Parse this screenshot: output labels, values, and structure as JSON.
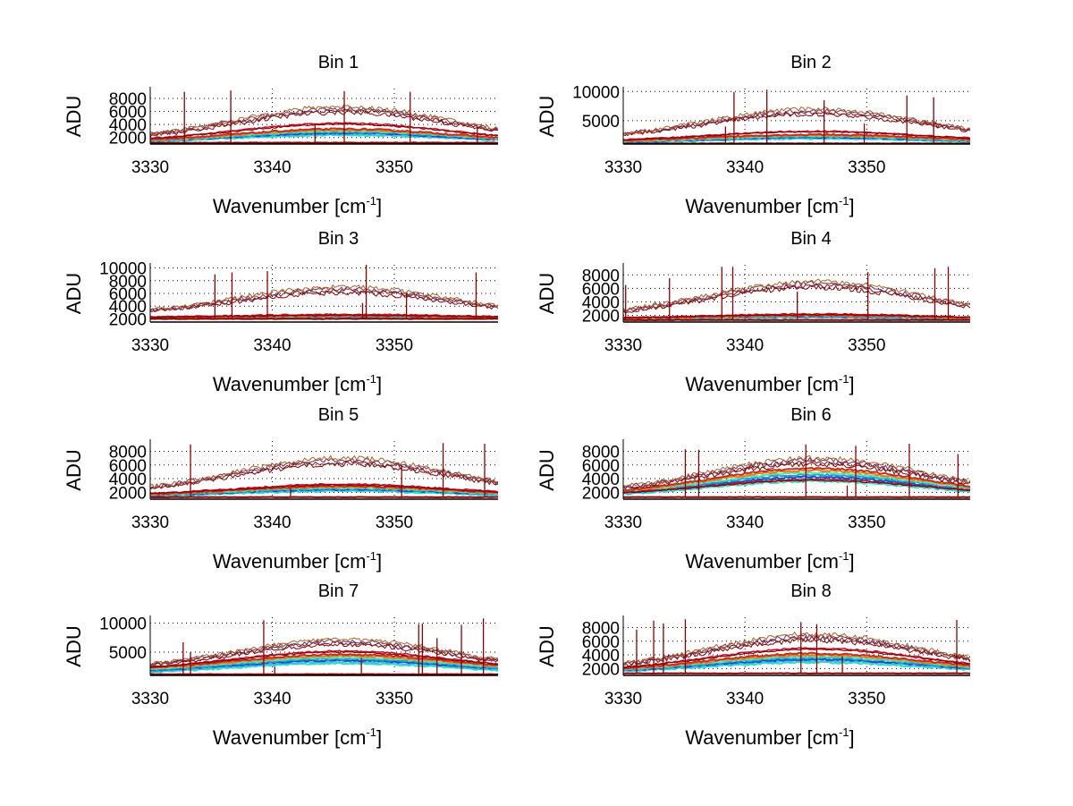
{
  "chart_data": [
    {
      "type": "line",
      "title": "Bin 1",
      "xlabel": "Wavenumber [cm",
      "xlabel_sup": "-1",
      "xlabel_end": "]",
      "ylabel": "ADU",
      "xlim": [
        3330,
        3358.5
      ],
      "ylim": [
        1000,
        9500
      ],
      "xticks": [
        3330,
        3340,
        3350
      ],
      "yticks": [
        2000,
        4000,
        6000,
        8000
      ],
      "grid": true,
      "upper_peak": 6700,
      "upper_base": 1500,
      "lower_peak": 4200,
      "lower_base": 1300,
      "band_peak": 3300,
      "floor": 1200,
      "spikes": [
        [
          3332.8,
          9000
        ],
        [
          3336.6,
          9200
        ],
        [
          3345.9,
          9100
        ],
        [
          3351.3,
          9000
        ],
        [
          3343.5,
          4000
        ],
        [
          3356.8,
          3500
        ]
      ]
    },
    {
      "type": "line",
      "title": "Bin 2",
      "xlabel": "Wavenumber [cm",
      "xlabel_sup": "-1",
      "xlabel_end": "]",
      "ylabel": "ADU",
      "xlim": [
        3330,
        3358.5
      ],
      "ylim": [
        1000,
        10500
      ],
      "xticks": [
        3330,
        3340,
        3350
      ],
      "yticks": [
        5000,
        10000
      ],
      "grid": true,
      "upper_peak": 7000,
      "upper_base": 1800,
      "lower_peak": 3200,
      "lower_base": 1400,
      "band_peak": 2600,
      "floor": 1100,
      "spikes": [
        [
          3339.1,
          9900
        ],
        [
          3341.8,
          10300
        ],
        [
          3346.5,
          8500
        ],
        [
          3353.3,
          9300
        ],
        [
          3355.5,
          9000
        ],
        [
          3338.4,
          4000
        ],
        [
          3349.8,
          4500
        ]
      ]
    },
    {
      "type": "line",
      "title": "Bin 3",
      "xlabel": "Wavenumber [cm",
      "xlabel_sup": "-1",
      "xlabel_end": "]",
      "ylabel": "ADU",
      "xlim": [
        3330,
        3358.5
      ],
      "ylim": [
        1500,
        10500
      ],
      "xticks": [
        3330,
        3340,
        3350
      ],
      "yticks": [
        2000,
        4000,
        6000,
        8000,
        10000
      ],
      "grid": true,
      "upper_peak": 7000,
      "upper_base": 2500,
      "lower_peak": 2700,
      "lower_base": 2200,
      "band_peak": 2500,
      "floor": 2000,
      "spikes": [
        [
          3335.3,
          9000
        ],
        [
          3336.7,
          9300
        ],
        [
          3339.6,
          9500
        ],
        [
          3347.7,
          10500
        ],
        [
          3351.0,
          6000
        ],
        [
          3356.7,
          9300
        ],
        [
          3347.4,
          4500
        ]
      ]
    },
    {
      "type": "line",
      "title": "Bin 4",
      "xlabel": "Wavenumber [cm",
      "xlabel_sup": "-1",
      "xlabel_end": "]",
      "ylabel": "ADU",
      "xlim": [
        3330,
        3358.5
      ],
      "ylim": [
        1000,
        9500
      ],
      "xticks": [
        3330,
        3340,
        3350
      ],
      "yticks": [
        2000,
        4000,
        6000,
        8000
      ],
      "grid": true,
      "upper_peak": 7000,
      "upper_base": 1800,
      "lower_peak": 2200,
      "lower_base": 1500,
      "band_peak": 2000,
      "floor": 1300,
      "spikes": [
        [
          3330.2,
          6500
        ],
        [
          3333.8,
          7500
        ],
        [
          3338.1,
          9200
        ],
        [
          3339.0,
          9200
        ],
        [
          3344.3,
          5500
        ],
        [
          3350.1,
          8400
        ],
        [
          3355.6,
          9000
        ],
        [
          3356.7,
          9200
        ]
      ]
    },
    {
      "type": "line",
      "title": "Bin 5",
      "xlabel": "Wavenumber [cm",
      "xlabel_sup": "-1",
      "xlabel_end": "]",
      "ylabel": "ADU",
      "xlim": [
        3330,
        3358.5
      ],
      "ylim": [
        1000,
        9500
      ],
      "xticks": [
        3330,
        3340,
        3350
      ],
      "yticks": [
        2000,
        4000,
        6000,
        8000
      ],
      "grid": true,
      "upper_peak": 7000,
      "upper_base": 1800,
      "lower_peak": 3200,
      "lower_base": 1500,
      "band_peak": 2900,
      "floor": 1300,
      "spikes": [
        [
          3333.3,
          9000
        ],
        [
          3354.0,
          9200
        ],
        [
          3357.4,
          9100
        ],
        [
          3350.6,
          6000
        ],
        [
          3341.5,
          2500
        ]
      ]
    },
    {
      "type": "line",
      "title": "Bin 6",
      "xlabel": "Wavenumber [cm",
      "xlabel_sup": "-1",
      "xlabel_end": "]",
      "ylabel": "ADU",
      "xlim": [
        3330,
        3358.5
      ],
      "ylim": [
        1000,
        9500
      ],
      "xticks": [
        3330,
        3340,
        3350
      ],
      "yticks": [
        2000,
        4000,
        6000,
        8000
      ],
      "grid": true,
      "upper_peak": 7000,
      "upper_base": 1800,
      "lower_peak": 3900,
      "lower_base": 1500,
      "band_peak": 5500,
      "floor": 1300,
      "spikes": [
        [
          3335.1,
          8300
        ],
        [
          3336.2,
          8200
        ],
        [
          3345.0,
          9000
        ],
        [
          3349.1,
          8800
        ],
        [
          3353.5,
          9100
        ],
        [
          3357.5,
          7600
        ],
        [
          3348.4,
          3000
        ]
      ]
    },
    {
      "type": "line",
      "title": "Bin 7",
      "xlabel": "Wavenumber [cm",
      "xlabel_sup": "-1",
      "xlabel_end": "]",
      "ylabel": "ADU",
      "xlim": [
        3330,
        3358.5
      ],
      "ylim": [
        1000,
        11000
      ],
      "xticks": [
        3330,
        3340,
        3350
      ],
      "yticks": [
        5000,
        10000
      ],
      "grid": true,
      "upper_peak": 7200,
      "upper_base": 1900,
      "lower_peak": 5200,
      "lower_base": 1800,
      "band_peak": 4600,
      "floor": 1200,
      "spikes": [
        [
          3332.7,
          6700
        ],
        [
          3333.3,
          5000
        ],
        [
          3339.3,
          10500
        ],
        [
          3352.0,
          9800
        ],
        [
          3352.3,
          9900
        ],
        [
          3353.5,
          7400
        ],
        [
          3355.5,
          9700
        ],
        [
          3357.3,
          10800
        ],
        [
          3347.3,
          4000
        ],
        [
          3340.2,
          2500
        ]
      ]
    },
    {
      "type": "line",
      "title": "Bin 8",
      "xlabel": "Wavenumber [cm",
      "xlabel_sup": "-1",
      "xlabel_end": "]",
      "ylabel": "ADU",
      "xlim": [
        3330,
        3358.5
      ],
      "ylim": [
        1000,
        9500
      ],
      "xticks": [
        3330,
        3340,
        3350
      ],
      "yticks": [
        2000,
        4000,
        6000,
        8000
      ],
      "grid": true,
      "upper_peak": 7000,
      "upper_base": 1700,
      "lower_peak": 5000,
      "lower_base": 1500,
      "band_peak": 4200,
      "floor": 1300,
      "spikes": [
        [
          3331.1,
          7700
        ],
        [
          3332.5,
          9000
        ],
        [
          3333.3,
          8600
        ],
        [
          3335.1,
          9200
        ],
        [
          3344.6,
          8800
        ],
        [
          3345.9,
          8500
        ],
        [
          3348.0,
          3800
        ],
        [
          3357.4,
          9100
        ]
      ]
    }
  ]
}
